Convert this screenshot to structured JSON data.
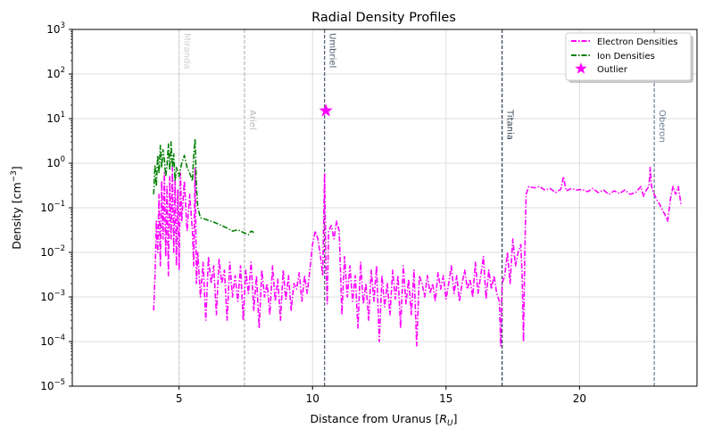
{
  "chart_data": {
    "type": "line",
    "title": "Radial Density Profiles",
    "xlabel_main": "Distance from Uranus [",
    "xlabel_sym": "R",
    "xlabel_sub": "U",
    "xlabel_end": "]",
    "ylabel_main": "Density [cm",
    "ylabel_sup": "−3",
    "ylabel_end": "]",
    "xlim": [
      1,
      24.4
    ],
    "ylim": [
      1e-05,
      1000
    ],
    "yscale": "log",
    "grid": true,
    "legend_position": "top-right",
    "x_ticks": [
      {
        "v": 5,
        "label": "5"
      },
      {
        "v": 10,
        "label": "10"
      },
      {
        "v": 15,
        "label": "15"
      },
      {
        "v": 20,
        "label": "20"
      }
    ],
    "y_ticks": [
      {
        "exp": -5,
        "base": "10",
        "sup": "−5"
      },
      {
        "exp": -4,
        "base": "10",
        "sup": "−4"
      },
      {
        "exp": -3,
        "base": "10",
        "sup": "−3"
      },
      {
        "exp": -2,
        "base": "10",
        "sup": "−2"
      },
      {
        "exp": -1,
        "base": "10",
        "sup": "−1"
      },
      {
        "exp": 0,
        "base": "10",
        "sup": "0"
      },
      {
        "exp": 1,
        "base": "10",
        "sup": "1"
      },
      {
        "exp": 2,
        "base": "10",
        "sup": "2"
      },
      {
        "exp": 3,
        "base": "10",
        "sup": "3"
      }
    ],
    "moons": [
      {
        "name": "Miranda",
        "x": 5.0,
        "color": "#d0d0d0"
      },
      {
        "name": "Ariel",
        "x": 7.45,
        "color": "#b8b8b8"
      },
      {
        "name": "Umbriel",
        "x": 10.45,
        "color": "#4a5a6a"
      },
      {
        "name": "Titania",
        "x": 17.1,
        "color": "#2f4050"
      },
      {
        "name": "Oberon",
        "x": 22.8,
        "color": "#6a7f95"
      }
    ],
    "series": [
      {
        "name": "Electron Densities",
        "color": "#ff00ff",
        "points": [
          [
            4.05,
            0.0005
          ],
          [
            4.1,
            0.003
          ],
          [
            4.15,
            0.05
          ],
          [
            4.2,
            0.01
          ],
          [
            4.25,
            0.2
          ],
          [
            4.3,
            0.005
          ],
          [
            4.35,
            0.4
          ],
          [
            4.4,
            0.02
          ],
          [
            4.45,
            0.6
          ],
          [
            4.5,
            0.008
          ],
          [
            4.55,
            0.3
          ],
          [
            4.6,
            0.003
          ],
          [
            4.65,
            0.5
          ],
          [
            4.7,
            0.02
          ],
          [
            4.75,
            0.8
          ],
          [
            4.8,
            0.01
          ],
          [
            4.85,
            0.4
          ],
          [
            4.9,
            0.005
          ],
          [
            4.95,
            0.25
          ],
          [
            5.0,
            0.004
          ],
          [
            5.05,
            0.6
          ],
          [
            5.1,
            0.05
          ],
          [
            5.2,
            0.4
          ],
          [
            5.3,
            0.03
          ],
          [
            5.4,
            0.2
          ],
          [
            5.5,
            0.03
          ],
          [
            5.55,
            0.005
          ],
          [
            5.6,
            0.8
          ],
          [
            5.65,
            0.002
          ],
          [
            5.7,
            0.01
          ],
          [
            5.8,
            0.001
          ],
          [
            5.9,
            0.006
          ],
          [
            6.0,
            0.0003
          ],
          [
            6.1,
            0.008
          ],
          [
            6.2,
            0.002
          ],
          [
            6.3,
            0.005
          ],
          [
            6.4,
            0.0004
          ],
          [
            6.5,
            0.007
          ],
          [
            6.6,
            0.002
          ],
          [
            6.7,
            0.004
          ],
          [
            6.8,
            0.0003
          ],
          [
            6.9,
            0.006
          ],
          [
            7.0,
            0.001
          ],
          [
            7.1,
            0.003
          ],
          [
            7.2,
            0.0008
          ],
          [
            7.3,
            0.005
          ],
          [
            7.4,
            0.0003
          ],
          [
            7.5,
            0.004
          ],
          [
            7.6,
            0.0012
          ],
          [
            7.7,
            0.006
          ],
          [
            7.8,
            0.0005
          ],
          [
            7.9,
            0.003
          ],
          [
            8.0,
            0.0002
          ],
          [
            8.1,
            0.004
          ],
          [
            8.2,
            0.001
          ],
          [
            8.3,
            0.002
          ],
          [
            8.4,
            0.0004
          ],
          [
            8.5,
            0.005
          ],
          [
            8.6,
            0.0008
          ],
          [
            8.7,
            0.0025
          ],
          [
            8.8,
            0.0003
          ],
          [
            8.9,
            0.004
          ],
          [
            9.0,
            0.0009
          ],
          [
            9.1,
            0.003
          ],
          [
            9.2,
            0.0005
          ],
          [
            9.3,
            0.002
          ],
          [
            9.4,
            0.0015
          ],
          [
            9.5,
            0.0035
          ],
          [
            9.6,
            0.0008
          ],
          [
            9.7,
            0.003
          ],
          [
            9.8,
            0.0012
          ],
          [
            9.9,
            0.004
          ],
          [
            10.0,
            0.015
          ],
          [
            10.1,
            0.03
          ],
          [
            10.2,
            0.02
          ],
          [
            10.3,
            0.008
          ],
          [
            10.38,
            0.003
          ],
          [
            10.45,
            0.6
          ],
          [
            10.5,
            0.005
          ],
          [
            10.55,
            0.0007
          ],
          [
            10.6,
            0.03
          ],
          [
            10.7,
            0.04
          ],
          [
            10.8,
            0.02
          ],
          [
            10.9,
            0.05
          ],
          [
            11.0,
            0.03
          ],
          [
            11.1,
            0.0004
          ],
          [
            11.2,
            0.008
          ],
          [
            11.3,
            0.001
          ],
          [
            11.4,
            0.005
          ],
          [
            11.5,
            0.0008
          ],
          [
            11.6,
            0.003
          ],
          [
            11.7,
            0.0002
          ],
          [
            11.8,
            0.006
          ],
          [
            11.9,
            0.0007
          ],
          [
            12.0,
            0.002
          ],
          [
            12.1,
            0.0003
          ],
          [
            12.2,
            0.004
          ],
          [
            12.3,
            0.0008
          ],
          [
            12.4,
            0.005
          ],
          [
            12.5,
            0.0001
          ],
          [
            12.6,
            0.003
          ],
          [
            12.7,
            0.0006
          ],
          [
            12.8,
            0.002
          ],
          [
            12.9,
            0.0004
          ],
          [
            13.0,
            0.004
          ],
          [
            13.1,
            0.0009
          ],
          [
            13.2,
            0.003
          ],
          [
            13.3,
            0.0002
          ],
          [
            13.4,
            0.005
          ],
          [
            13.5,
            0.0007
          ],
          [
            13.6,
            0.0025
          ],
          [
            13.7,
            0.0004
          ],
          [
            13.8,
            0.004
          ],
          [
            13.9,
            8e-05
          ],
          [
            14.0,
            0.003
          ],
          [
            14.1,
            0.002
          ],
          [
            14.2,
            0.001
          ],
          [
            14.3,
            0.003
          ],
          [
            14.4,
            0.0012
          ],
          [
            14.5,
            0.002
          ],
          [
            14.6,
            0.0008
          ],
          [
            14.7,
            0.0035
          ],
          [
            14.8,
            0.0015
          ],
          [
            14.9,
            0.003
          ],
          [
            15.0,
            0.0009
          ],
          [
            15.1,
            0.002
          ],
          [
            15.2,
            0.005
          ],
          [
            15.3,
            0.0012
          ],
          [
            15.4,
            0.003
          ],
          [
            15.5,
            0.0008
          ],
          [
            15.6,
            0.002
          ],
          [
            15.7,
            0.004
          ],
          [
            15.8,
            0.0015
          ],
          [
            15.9,
            0.0025
          ],
          [
            16.0,
            0.001
          ],
          [
            16.1,
            0.006
          ],
          [
            16.2,
            0.0012
          ],
          [
            16.3,
            0.003
          ],
          [
            16.4,
            0.008
          ],
          [
            16.5,
            0.0009
          ],
          [
            16.6,
            0.004
          ],
          [
            16.7,
            0.0015
          ],
          [
            16.8,
            0.003
          ],
          [
            16.9,
            0.0012
          ],
          [
            17.0,
            0.0008
          ],
          [
            17.05,
            8e-05
          ],
          [
            17.1,
            0.002
          ],
          [
            17.2,
            0.003
          ],
          [
            17.3,
            0.01
          ],
          [
            17.4,
            0.002
          ],
          [
            17.5,
            0.02
          ],
          [
            17.6,
            0.005
          ],
          [
            17.7,
            0.01
          ],
          [
            17.8,
            0.015
          ],
          [
            17.85,
            0.003
          ],
          [
            17.9,
            0.0001
          ],
          [
            17.95,
            0.01
          ],
          [
            18.0,
            0.2
          ],
          [
            18.1,
            0.3
          ],
          [
            18.3,
            0.28
          ],
          [
            18.5,
            0.3
          ],
          [
            18.7,
            0.25
          ],
          [
            18.9,
            0.27
          ],
          [
            19.1,
            0.22
          ],
          [
            19.3,
            0.26
          ],
          [
            19.4,
            0.5
          ],
          [
            19.5,
            0.24
          ],
          [
            19.7,
            0.27
          ],
          [
            19.9,
            0.25
          ],
          [
            20.1,
            0.26
          ],
          [
            20.3,
            0.23
          ],
          [
            20.5,
            0.27
          ],
          [
            20.7,
            0.22
          ],
          [
            20.9,
            0.25
          ],
          [
            21.1,
            0.2
          ],
          [
            21.3,
            0.24
          ],
          [
            21.5,
            0.21
          ],
          [
            21.7,
            0.25
          ],
          [
            21.9,
            0.2
          ],
          [
            22.1,
            0.22
          ],
          [
            22.3,
            0.3
          ],
          [
            22.4,
            0.18
          ],
          [
            22.5,
            0.25
          ],
          [
            22.6,
            0.3
          ],
          [
            22.65,
            0.8
          ],
          [
            22.7,
            0.3
          ],
          [
            22.8,
            0.2
          ],
          [
            22.9,
            0.15
          ],
          [
            23.0,
            0.12
          ],
          [
            23.1,
            0.09
          ],
          [
            23.2,
            0.07
          ],
          [
            23.3,
            0.05
          ],
          [
            23.4,
            0.15
          ],
          [
            23.5,
            0.3
          ],
          [
            23.6,
            0.2
          ],
          [
            23.7,
            0.3
          ],
          [
            23.8,
            0.12
          ]
        ]
      },
      {
        "name": "Ion Densities",
        "color": "#008000",
        "points": [
          [
            4.05,
            0.2
          ],
          [
            4.1,
            0.9
          ],
          [
            4.15,
            0.3
          ],
          [
            4.2,
            1.5
          ],
          [
            4.25,
            0.6
          ],
          [
            4.3,
            2.5
          ],
          [
            4.35,
            0.8
          ],
          [
            4.4,
            2.0
          ],
          [
            4.45,
            1.2
          ],
          [
            4.5,
            0.5
          ],
          [
            4.55,
            0.9
          ],
          [
            4.6,
            2.7
          ],
          [
            4.65,
            0.7
          ],
          [
            4.7,
            3.0
          ],
          [
            4.75,
            0.8
          ],
          [
            4.8,
            1.6
          ],
          [
            4.85,
            0.4
          ],
          [
            4.9,
            0.8
          ],
          [
            5.0,
            0.5
          ],
          [
            5.1,
            1.0
          ],
          [
            5.2,
            1.5
          ],
          [
            5.3,
            0.8
          ],
          [
            5.4,
            0.6
          ],
          [
            5.5,
            0.4
          ],
          [
            5.55,
            1.5
          ],
          [
            5.6,
            3.5
          ],
          [
            5.65,
            0.3
          ],
          [
            5.7,
            0.1
          ],
          [
            5.8,
            0.06
          ],
          [
            6.0,
            0.055
          ],
          [
            6.2,
            0.05
          ],
          [
            6.4,
            0.045
          ],
          [
            6.6,
            0.04
          ],
          [
            6.8,
            0.035
          ],
          [
            7.0,
            0.03
          ],
          [
            7.2,
            0.032
          ],
          [
            7.4,
            0.028
          ],
          [
            7.6,
            0.025
          ],
          [
            7.7,
            0.03
          ],
          [
            7.8,
            0.028
          ]
        ]
      }
    ],
    "outlier": {
      "name": "Outlier",
      "x": 10.5,
      "y": 15,
      "color": "#ff00ff"
    }
  }
}
